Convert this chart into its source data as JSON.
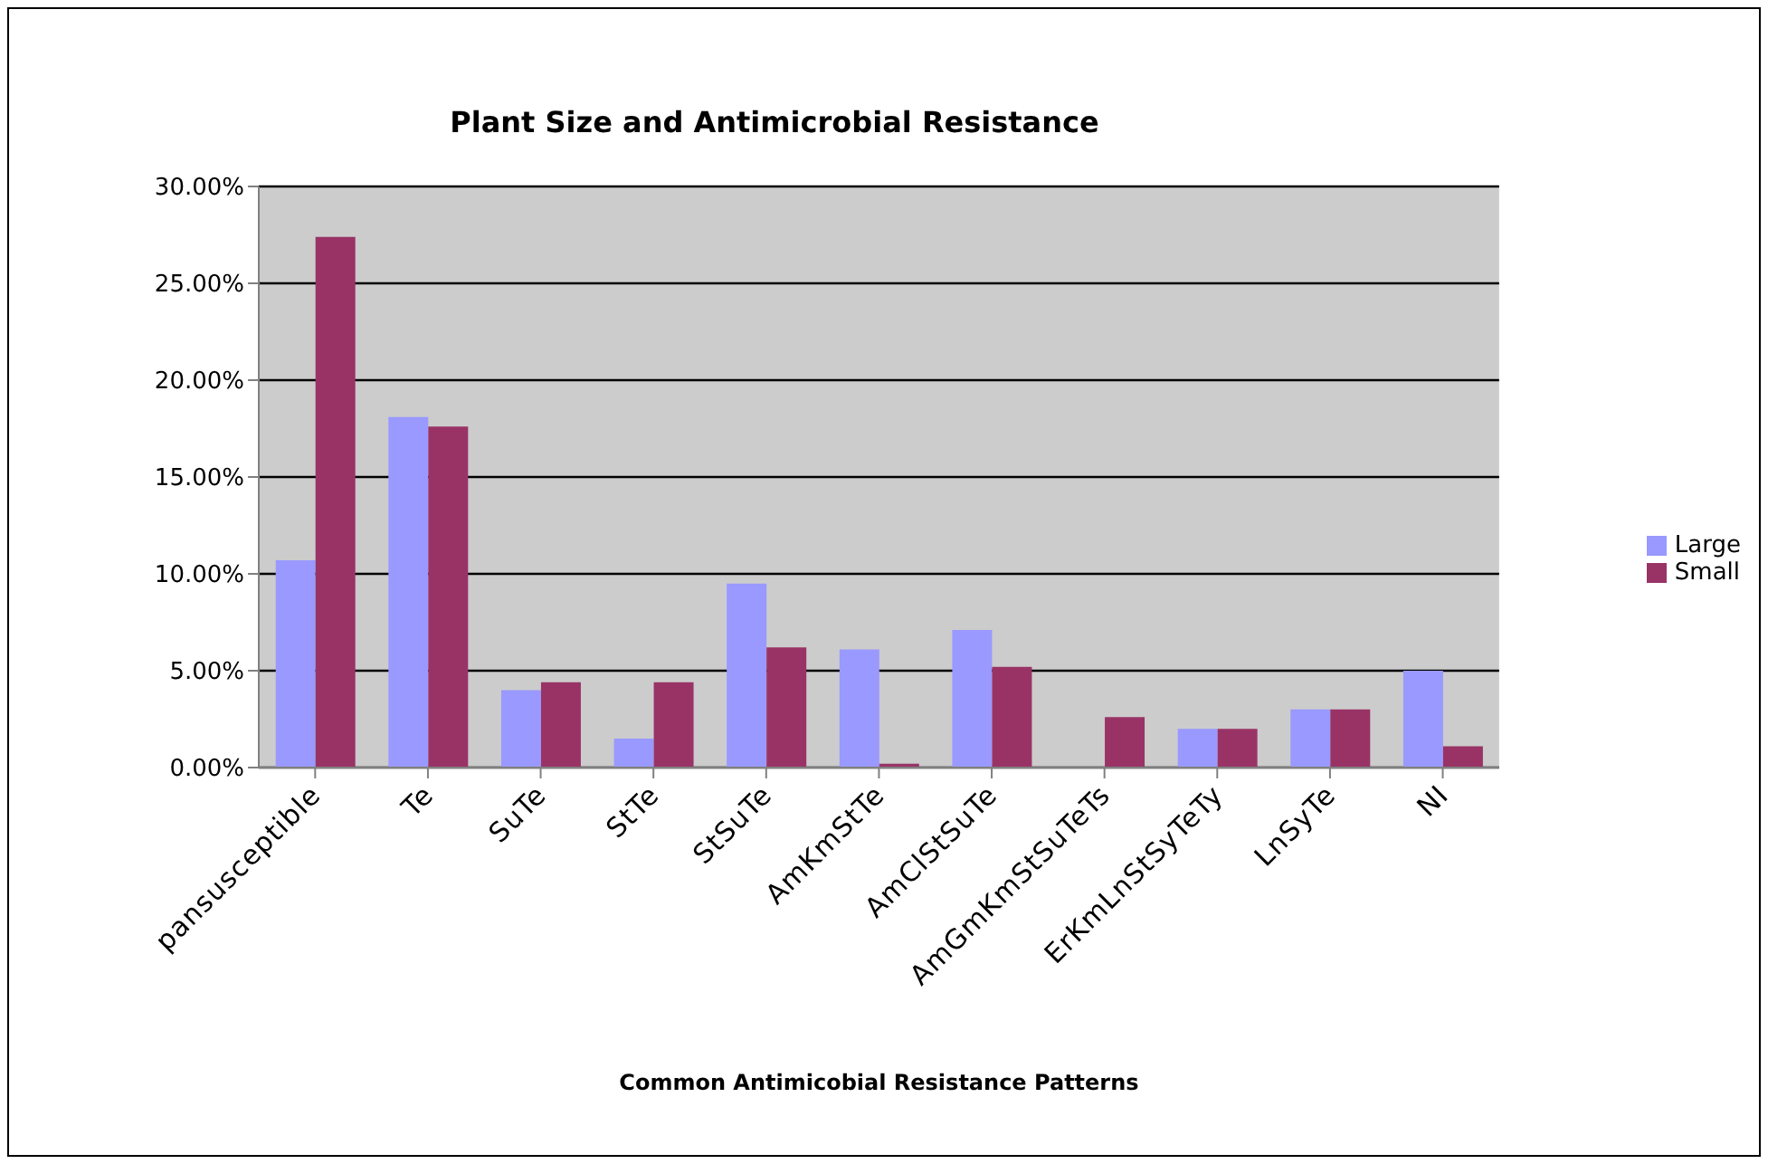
{
  "chart_data": {
    "type": "bar",
    "title": "Plant Size and Antimicrobial Resistance",
    "xlabel": "Common Antimicobial Resistance Patterns",
    "categories": [
      "pansusceptible",
      "Te",
      "SuTe",
      "StTe",
      "StSuTe",
      "AmKmStTe",
      "AmClStSuTe",
      "AmGmKmStSuTeTs",
      "ErKmLnStSyTeTy",
      "LnSyTe",
      "NI"
    ],
    "series": [
      {
        "name": "Large",
        "color": "#9999ff",
        "values": [
          10.7,
          18.1,
          4.0,
          1.5,
          9.5,
          6.1,
          7.1,
          null,
          2.0,
          3.0,
          5.0
        ]
      },
      {
        "name": "Small",
        "color": "#993366",
        "values": [
          27.4,
          17.6,
          4.4,
          4.4,
          6.2,
          0.2,
          5.2,
          2.6,
          2.0,
          3.0,
          1.1
        ]
      }
    ],
    "ylim": [
      0,
      30
    ],
    "yticks": [
      {
        "value": 0,
        "label": "0.00%"
      },
      {
        "value": 5,
        "label": "5.00%"
      },
      {
        "value": 10,
        "label": "10.00%"
      },
      {
        "value": 15,
        "label": "15.00%"
      },
      {
        "value": 20,
        "label": "20.00%"
      },
      {
        "value": 25,
        "label": "25.00%"
      },
      {
        "value": 30,
        "label": "30.00%"
      }
    ],
    "grid": "y",
    "legend": "right"
  }
}
